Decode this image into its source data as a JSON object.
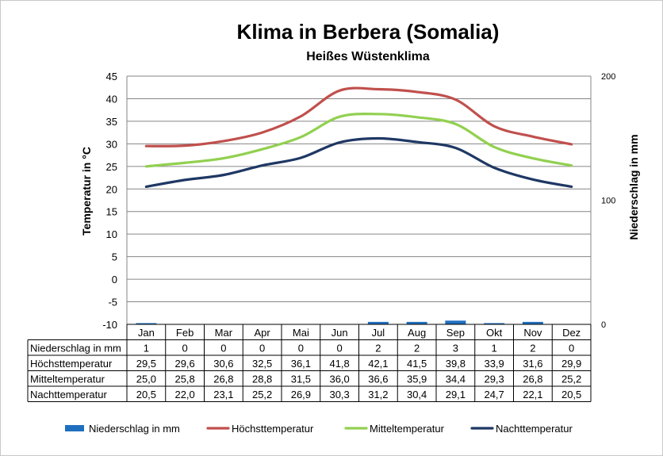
{
  "chart_data": {
    "type": "line",
    "title": "Klima in Berbera (Somalia)",
    "subtitle": "Heißes Wüstenklima",
    "ylabel": "Temperatur in °C",
    "y2label": "Niederschlag in mm",
    "ylim": [
      -10,
      45
    ],
    "y2lim": [
      0,
      200
    ],
    "y_ticks": [
      "45",
      "40",
      "35",
      "30",
      "25",
      "20",
      "15",
      "10",
      "5",
      "0",
      "-5",
      "-10"
    ],
    "y2_ticks": [
      "200",
      "100",
      "0"
    ],
    "categories": [
      "Jan",
      "Feb",
      "Mar",
      "Apr",
      "Mai",
      "Jun",
      "Jul",
      "Aug",
      "Sep",
      "Okt",
      "Nov",
      "Dez"
    ],
    "grid": true,
    "legend_position": "bottom",
    "bar_series": {
      "name": "Niederschlag in mm",
      "color": "#1f6fbf",
      "values": [
        1,
        0,
        0,
        0,
        0,
        0,
        2,
        2,
        3,
        1,
        2,
        0
      ],
      "labels": [
        "1",
        "0",
        "0",
        "0",
        "0",
        "0",
        "2",
        "2",
        "3",
        "1",
        "2",
        "0"
      ]
    },
    "series": [
      {
        "name": "Höchsttemperatur",
        "color": "#c0504d",
        "values": [
          29.5,
          29.6,
          30.6,
          32.5,
          36.1,
          41.8,
          42.1,
          41.5,
          39.8,
          33.9,
          31.6,
          29.9
        ],
        "labels": [
          "29,5",
          "29,6",
          "30,6",
          "32,5",
          "36,1",
          "41,8",
          "42,1",
          "41,5",
          "39,8",
          "33,9",
          "31,6",
          "29,9"
        ]
      },
      {
        "name": "Mitteltemperatur",
        "color": "#92d050",
        "values": [
          25.0,
          25.8,
          26.8,
          28.8,
          31.5,
          36.0,
          36.6,
          35.9,
          34.4,
          29.3,
          26.8,
          25.2
        ],
        "labels": [
          "25,0",
          "25,8",
          "26,8",
          "28,8",
          "31,5",
          "36,0",
          "36,6",
          "35,9",
          "34,4",
          "29,3",
          "26,8",
          "25,2"
        ]
      },
      {
        "name": "Nachttemperatur",
        "color": "#1f3864",
        "values": [
          20.5,
          22.0,
          23.1,
          25.2,
          26.9,
          30.3,
          31.2,
          30.4,
          29.1,
          24.7,
          22.1,
          20.5
        ],
        "labels": [
          "20,5",
          "22,0",
          "23,1",
          "25,2",
          "26,9",
          "30,3",
          "31,2",
          "30,4",
          "29,1",
          "24,7",
          "22,1",
          "20,5"
        ]
      }
    ]
  }
}
